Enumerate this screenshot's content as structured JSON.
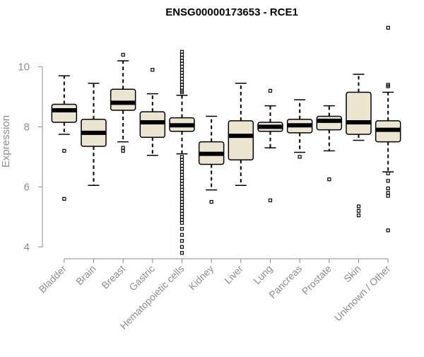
{
  "chart_data": {
    "type": "boxplot",
    "title": "ENSG00000173653 - RCE1",
    "xlabel": "",
    "ylabel": "Expression",
    "ylim": [
      3.7,
      11.4
    ],
    "yticks": [
      4,
      6,
      8,
      10
    ],
    "box_color": "#ede6cf",
    "median_color": "#000000",
    "categories": [
      "Bladder",
      "Brain",
      "Breast",
      "Gastric",
      "Hematopoietic cells",
      "Kidney",
      "Liver",
      "Lung",
      "Pancreas",
      "Prostate",
      "Skin",
      "Unknown / Other"
    ],
    "boxes": [
      {
        "name": "Bladder",
        "whisker_low": 7.75,
        "q1": 8.15,
        "median": 8.55,
        "q3": 8.75,
        "whisker_high": 9.7,
        "outliers": [
          7.2,
          5.6
        ]
      },
      {
        "name": "Brain",
        "whisker_low": 6.05,
        "q1": 7.35,
        "median": 7.8,
        "q3": 8.25,
        "whisker_high": 9.45,
        "outliers": []
      },
      {
        "name": "Breast",
        "whisker_low": 7.5,
        "q1": 8.55,
        "median": 8.8,
        "q3": 9.25,
        "whisker_high": 10.2,
        "outliers": [
          10.4,
          7.3,
          7.2
        ]
      },
      {
        "name": "Gastric",
        "whisker_low": 7.05,
        "q1": 7.65,
        "median": 8.15,
        "q3": 8.5,
        "whisker_high": 9.1,
        "outliers": [
          9.9
        ]
      },
      {
        "name": "Hematopoietic cells",
        "whisker_low": 7.1,
        "q1": 7.85,
        "median": 8.05,
        "q3": 8.3,
        "whisker_high": 9.05,
        "outliers": [
          10.5,
          10.4,
          10.3,
          10.2,
          10.1,
          10.0,
          9.9,
          9.8,
          9.7,
          9.6,
          9.5,
          9.4,
          9.3,
          9.2,
          9.15,
          7.0,
          6.9,
          6.8,
          6.7,
          6.6,
          6.5,
          6.4,
          6.3,
          6.2,
          6.1,
          6.0,
          5.9,
          5.8,
          5.7,
          5.6,
          5.5,
          5.4,
          5.3,
          5.2,
          5.1,
          5.0,
          4.9,
          4.8,
          4.6,
          4.4,
          4.2,
          4.0,
          3.8
        ]
      },
      {
        "name": "Kidney",
        "whisker_low": 5.9,
        "q1": 6.75,
        "median": 7.1,
        "q3": 7.5,
        "whisker_high": 8.35,
        "outliers": [
          5.5
        ]
      },
      {
        "name": "Liver",
        "whisker_low": 6.05,
        "q1": 6.9,
        "median": 7.7,
        "q3": 8.2,
        "whisker_high": 9.45,
        "outliers": []
      },
      {
        "name": "Lung",
        "whisker_low": 7.3,
        "q1": 7.85,
        "median": 8.0,
        "q3": 8.15,
        "whisker_high": 8.7,
        "outliers": [
          9.2,
          5.55
        ]
      },
      {
        "name": "Pancreas",
        "whisker_low": 7.15,
        "q1": 7.8,
        "median": 8.05,
        "q3": 8.25,
        "whisker_high": 8.9,
        "outliers": [
          7.0
        ]
      },
      {
        "name": "Prostate",
        "whisker_low": 7.2,
        "q1": 7.9,
        "median": 8.2,
        "q3": 8.35,
        "whisker_high": 8.7,
        "outliers": [
          6.25
        ]
      },
      {
        "name": "Skin",
        "whisker_low": 7.55,
        "q1": 7.75,
        "median": 8.15,
        "q3": 9.15,
        "whisker_high": 9.75,
        "outliers": [
          5.35,
          5.2,
          5.05
        ]
      },
      {
        "name": "Unknown / Other",
        "whisker_low": 6.5,
        "q1": 7.5,
        "median": 7.9,
        "q3": 8.2,
        "whisker_high": 9.15,
        "outliers": [
          11.3,
          9.4,
          9.35,
          6.45,
          6.2,
          5.95,
          5.8,
          5.7,
          4.55
        ]
      }
    ]
  }
}
